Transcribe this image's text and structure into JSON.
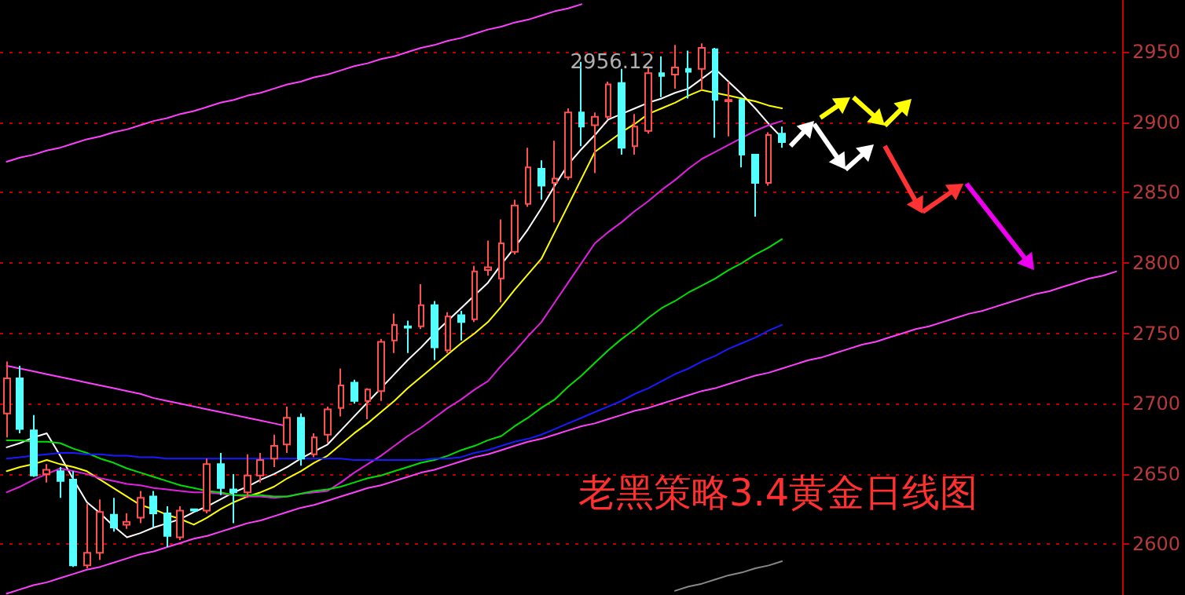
{
  "chart_data": {
    "type": "candlestick",
    "categories": [
      null,
      null,
      null,
      null,
      null,
      null,
      null,
      null,
      null,
      null,
      null,
      null,
      null,
      null,
      null,
      null,
      null,
      null,
      null,
      null,
      null,
      null,
      null,
      null,
      null,
      null,
      null,
      null,
      null,
      null,
      null,
      null,
      null,
      null,
      null,
      null,
      null,
      null,
      null,
      null,
      null,
      null,
      null,
      null,
      null,
      null,
      null,
      null,
      null,
      null,
      null,
      null,
      null,
      null,
      null,
      null,
      null,
      null,
      null,
      null,
      null,
      null,
      null,
      null,
      null,
      null,
      null,
      null,
      null,
      null,
      null,
      null,
      null,
      null,
      null,
      null,
      null,
      null,
      null,
      null,
      null,
      null,
      null,
      null
    ],
    "ohlc": [
      [
        2693,
        2730,
        2676,
        2718
      ],
      [
        2718,
        2727,
        2679,
        2682
      ],
      [
        2681,
        2692,
        2648,
        2649
      ],
      [
        2650,
        2657,
        2644,
        2653
      ],
      [
        2652,
        2655,
        2633,
        2645
      ],
      [
        2646,
        2652,
        2584,
        2585
      ],
      [
        2585,
        2629,
        2583,
        2594
      ],
      [
        2594,
        2632,
        2589,
        2623
      ],
      [
        2621,
        2633,
        2609,
        2612
      ],
      [
        2614,
        2622,
        2611,
        2616
      ],
      [
        2619,
        2638,
        2615,
        2633
      ],
      [
        2634,
        2638,
        2612,
        2622
      ],
      [
        2622,
        2627,
        2598,
        2606
      ],
      [
        2605,
        2627,
        2603,
        2624
      ],
      [
        2625,
        2625,
        2623,
        2624
      ],
      [
        2624,
        2661,
        2622,
        2657
      ],
      [
        2657,
        2665,
        2635,
        2640
      ],
      [
        2639,
        2650,
        2615,
        2637
      ],
      [
        2637,
        2664,
        2633,
        2649
      ],
      [
        2649,
        2665,
        2644,
        2660
      ],
      [
        2661,
        2678,
        2655,
        2670
      ],
      [
        2671,
        2698,
        2665,
        2690
      ],
      [
        2690,
        2693,
        2656,
        2661
      ],
      [
        2664,
        2679,
        2662,
        2676
      ],
      [
        2678,
        2698,
        2672,
        2696
      ],
      [
        2697,
        2725,
        2691,
        2713
      ],
      [
        2715,
        2717,
        2700,
        2702
      ],
      [
        2702,
        2711,
        2689,
        2710
      ],
      [
        2709,
        2746,
        2702,
        2744
      ],
      [
        2745,
        2764,
        2736,
        2756
      ],
      [
        2755,
        2759,
        2736,
        2754
      ],
      [
        2755,
        2785,
        2753,
        2770
      ],
      [
        2770,
        2773,
        2731,
        2740
      ],
      [
        2738,
        2765,
        2736,
        2762
      ],
      [
        2763,
        2766,
        2745,
        2758
      ],
      [
        2760,
        2798,
        2758,
        2794
      ],
      [
        2795,
        2816,
        2791,
        2797
      ],
      [
        2789,
        2831,
        2772,
        2814
      ],
      [
        2808,
        2845,
        2806,
        2841
      ],
      [
        2842,
        2882,
        2840,
        2868
      ],
      [
        2867,
        2873,
        2845,
        2855
      ],
      [
        2857,
        2887,
        2829,
        2860
      ],
      [
        2861,
        2910,
        2859,
        2907
      ],
      [
        2907,
        2943,
        2883,
        2897
      ],
      [
        2898,
        2907,
        2864,
        2904
      ],
      [
        2904,
        2929,
        2902,
        2927
      ],
      [
        2928,
        2938,
        2877,
        2882
      ],
      [
        2883,
        2906,
        2877,
        2897
      ],
      [
        2894,
        2939,
        2892,
        2935
      ],
      [
        2935,
        2947,
        2918,
        2933
      ],
      [
        2934,
        2955,
        2924,
        2939
      ],
      [
        2938,
        2951,
        2917,
        2936
      ],
      [
        2938,
        2956.12,
        2923,
        2953
      ],
      [
        2952,
        2953,
        2889,
        2916
      ],
      [
        2915,
        2929,
        2890,
        2916
      ],
      [
        2916,
        2917,
        2868,
        2877
      ],
      [
        2877,
        2877,
        2833,
        2857
      ],
      [
        2857,
        2893,
        2855,
        2891
      ],
      [
        2892,
        2897,
        2882,
        2886
      ],
      null,
      null,
      null,
      null,
      null,
      null,
      null,
      null,
      null,
      null,
      null,
      null,
      null,
      null,
      null,
      null,
      null,
      null,
      null,
      null,
      null,
      null,
      null,
      null,
      null
    ],
    "series": [
      {
        "type": "line",
        "color": "#ffffff",
        "values": [
          2669,
          2672,
          2676,
          2679,
          2663,
          2646,
          2630,
          2622,
          2613,
          2605,
          2608,
          2612,
          2615,
          2618,
          2623,
          2627,
          2632,
          2637,
          2641,
          2646,
          2650,
          2655,
          2661,
          2666,
          2671,
          2681,
          2691,
          2701,
          2711,
          2721,
          2731,
          2740,
          2750,
          2759,
          2768,
          2777,
          2786,
          2799,
          2811,
          2824,
          2839,
          2855,
          2870,
          2881,
          2891,
          2902,
          2906,
          2910,
          2914,
          2917,
          2921,
          2924,
          2931,
          2938,
          2929,
          2920,
          2910,
          2899,
          2889,
          null,
          null,
          null,
          null,
          null,
          null,
          null,
          null,
          null,
          null,
          null,
          null,
          null,
          null,
          null,
          null,
          null,
          null,
          null,
          null,
          null,
          null,
          null,
          null,
          null
        ]
      },
      {
        "type": "line",
        "color": "#ffff00",
        "values": [
          2652,
          2655,
          2657,
          2660,
          2657,
          2655,
          2652,
          2646,
          2640,
          2634,
          2628,
          2625,
          2621,
          2618,
          2614,
          2619,
          2625,
          2630,
          2634,
          2637,
          2641,
          2647,
          2652,
          2658,
          2663,
          2671,
          2679,
          2686,
          2694,
          2702,
          2711,
          2719,
          2727,
          2735,
          2743,
          2750,
          2758,
          2769,
          2781,
          2792,
          2803,
          2822,
          2841,
          2860,
          2879,
          2886,
          2893,
          2899,
          2906,
          2910,
          2914,
          2919,
          2923,
          2921,
          2919,
          2917,
          2915,
          2912,
          2910,
          null,
          null,
          null,
          null,
          null,
          null,
          null,
          null,
          null,
          null,
          null,
          null,
          null,
          null,
          null,
          null,
          null,
          null,
          null,
          null,
          null,
          null,
          null,
          null,
          null
        ]
      },
      {
        "type": "line",
        "color": "#e020e0",
        "values": [
          2637,
          2641,
          2646,
          2650,
          2654,
          2652,
          2650,
          2647,
          2645,
          2643,
          2642,
          2640,
          2639,
          2638,
          2637,
          2637,
          2636,
          2635,
          2634,
          2634,
          2633,
          2634,
          2636,
          2637,
          2638,
          2644,
          2651,
          2657,
          2663,
          2670,
          2677,
          2683,
          2690,
          2697,
          2703,
          2710,
          2716,
          2727,
          2737,
          2748,
          2758,
          2772,
          2786,
          2800,
          2814,
          2822,
          2829,
          2837,
          2844,
          2852,
          2859,
          2867,
          2874,
          2879,
          2884,
          2889,
          2894,
          2898,
          2901,
          null,
          null,
          null,
          null,
          null,
          null,
          null,
          null,
          null,
          null,
          null,
          null,
          null,
          null,
          null,
          null,
          null,
          null,
          null,
          null,
          null,
          null,
          null,
          null,
          null
        ]
      },
      {
        "type": "line",
        "color": "#00e000",
        "values": [
          2674,
          2674,
          2673,
          2673,
          2672,
          2668,
          2665,
          2661,
          2658,
          2654,
          2651,
          2648,
          2645,
          2642,
          2640,
          2638,
          2637,
          2635,
          2635,
          2635,
          2634,
          2634,
          2636,
          2638,
          2639,
          2641,
          2644,
          2647,
          2649,
          2652,
          2655,
          2658,
          2660,
          2663,
          2667,
          2670,
          2674,
          2677,
          2684,
          2690,
          2697,
          2703,
          2712,
          2720,
          2729,
          2738,
          2746,
          2753,
          2761,
          2768,
          2773,
          2779,
          2784,
          2789,
          2795,
          2800,
          2806,
          2811,
          2817,
          null,
          null,
          null,
          null,
          null,
          null,
          null,
          null,
          null,
          null,
          null,
          null,
          null,
          null,
          null,
          null,
          null,
          null,
          null,
          null,
          null,
          null,
          null,
          null,
          null
        ]
      },
      {
        "type": "line",
        "color": "#1a1aff",
        "values": [
          2661,
          2662,
          2663,
          2664,
          2665,
          2665,
          2664,
          2664,
          2663,
          2663,
          2662,
          2662,
          2661,
          2661,
          2661,
          2661,
          2661,
          2661,
          2661,
          2661,
          2661,
          2661,
          2661,
          2661,
          2661,
          2661,
          2660,
          2660,
          2660,
          2660,
          2660,
          2660,
          2661,
          2661,
          2662,
          2665,
          2667,
          2670,
          2673,
          2675,
          2678,
          2682,
          2686,
          2690,
          2694,
          2698,
          2702,
          2707,
          2711,
          2716,
          2721,
          2725,
          2730,
          2734,
          2739,
          2743,
          2747,
          2752,
          2756,
          null,
          null,
          null,
          null,
          null,
          null,
          null,
          null,
          null,
          null,
          null,
          null,
          null,
          null,
          null,
          null,
          null,
          null,
          null,
          null,
          null,
          null,
          null,
          null,
          null
        ]
      },
      {
        "type": "line",
        "color": "#888888",
        "values": [
          null,
          null,
          null,
          null,
          null,
          null,
          null,
          null,
          null,
          null,
          null,
          null,
          null,
          null,
          null,
          null,
          null,
          null,
          null,
          null,
          null,
          null,
          null,
          null,
          null,
          null,
          null,
          null,
          null,
          null,
          null,
          null,
          null,
          null,
          null,
          null,
          null,
          null,
          null,
          null,
          null,
          null,
          null,
          null,
          null,
          null,
          null,
          null,
          null,
          null,
          2567,
          2570,
          2572,
          2575,
          2578,
          2580,
          2583,
          2585,
          2588,
          null,
          null,
          null,
          null,
          null,
          null,
          null,
          null,
          null,
          null,
          null,
          null,
          null,
          null,
          null,
          null,
          null,
          null,
          null,
          null,
          null,
          null,
          null,
          null,
          null
        ]
      },
      {
        "type": "line",
        "color": "#ff40ff",
        "values": [
          2872,
          2875,
          2877,
          2880,
          2882,
          2885,
          2888,
          2890,
          2893,
          2895,
          2898,
          2901,
          2903,
          2906,
          2908,
          2911,
          2914,
          2916,
          2919,
          2921,
          2924,
          2927,
          2929,
          2932,
          2934,
          2937,
          2940,
          2942,
          2945,
          2947,
          2950,
          2953,
          2955,
          2958,
          2960,
          2963,
          2966,
          2968,
          2971,
          2973,
          2976,
          2979,
          2981,
          2984,
          null,
          null,
          null,
          null,
          null,
          null,
          null,
          null,
          null,
          null,
          null,
          null,
          null,
          null,
          null,
          null,
          null,
          null,
          null,
          null,
          null,
          null,
          null,
          null,
          null,
          null,
          null,
          null,
          null,
          null,
          null,
          null,
          null,
          null,
          null,
          null,
          null,
          null,
          null,
          null
        ]
      },
      {
        "type": "line",
        "color": "#ff40ff",
        "values": [
          2727,
          2725,
          2723,
          2721,
          2719,
          2717,
          2715,
          2713,
          2711,
          2709,
          2707,
          2704,
          2702,
          2700,
          2698,
          2696,
          2694,
          2692,
          2690,
          2688,
          2686,
          2684,
          null,
          null,
          null,
          null,
          null,
          null,
          null,
          null,
          null,
          null,
          null,
          null,
          null,
          null,
          null,
          null,
          null,
          null,
          null,
          null,
          null,
          null,
          null,
          null,
          null,
          null,
          null,
          null,
          null,
          null,
          null,
          null,
          null,
          null,
          null,
          null,
          null,
          null,
          null,
          null,
          null,
          null,
          null,
          null,
          null,
          null,
          null,
          null,
          null,
          null,
          null,
          null,
          null,
          null,
          null,
          null,
          null,
          null,
          null,
          null,
          null,
          null
        ]
      },
      {
        "type": "line",
        "color": "#ff40ff",
        "values": [
          2565,
          2568,
          2571,
          2573,
          2576,
          2579,
          2582,
          2584,
          2587,
          2590,
          2593,
          2595,
          2598,
          2601,
          2604,
          2606,
          2609,
          2612,
          2615,
          2617,
          2620,
          2623,
          2626,
          2628,
          2631,
          2634,
          2637,
          2640,
          2642,
          2645,
          2648,
          2651,
          2653,
          2656,
          2659,
          2662,
          2664,
          2667,
          2670,
          2673,
          2675,
          2678,
          2681,
          2684,
          2686,
          2689,
          2692,
          2695,
          2697,
          2700,
          2703,
          2706,
          2709,
          2711,
          2714,
          2717,
          2720,
          2722,
          2725,
          2728,
          2731,
          2733,
          2736,
          2739,
          2742,
          2744,
          2747,
          2750,
          2753,
          2755,
          2758,
          2761,
          2764,
          2766,
          2769,
          2772,
          2775,
          2778,
          2780,
          2783,
          2786,
          2789,
          2791,
          2794
        ]
      }
    ],
    "ylim": [
      2564,
      2987
    ],
    "yticks": [
      2600,
      2650,
      2700,
      2750,
      2800,
      2850,
      2900,
      2950
    ],
    "tick_labels": "y",
    "grid": "y",
    "line_style": "solid",
    "annotations": [
      "老黑策略3.4黄金日线图",
      "2956.12"
    ]
  }
}
